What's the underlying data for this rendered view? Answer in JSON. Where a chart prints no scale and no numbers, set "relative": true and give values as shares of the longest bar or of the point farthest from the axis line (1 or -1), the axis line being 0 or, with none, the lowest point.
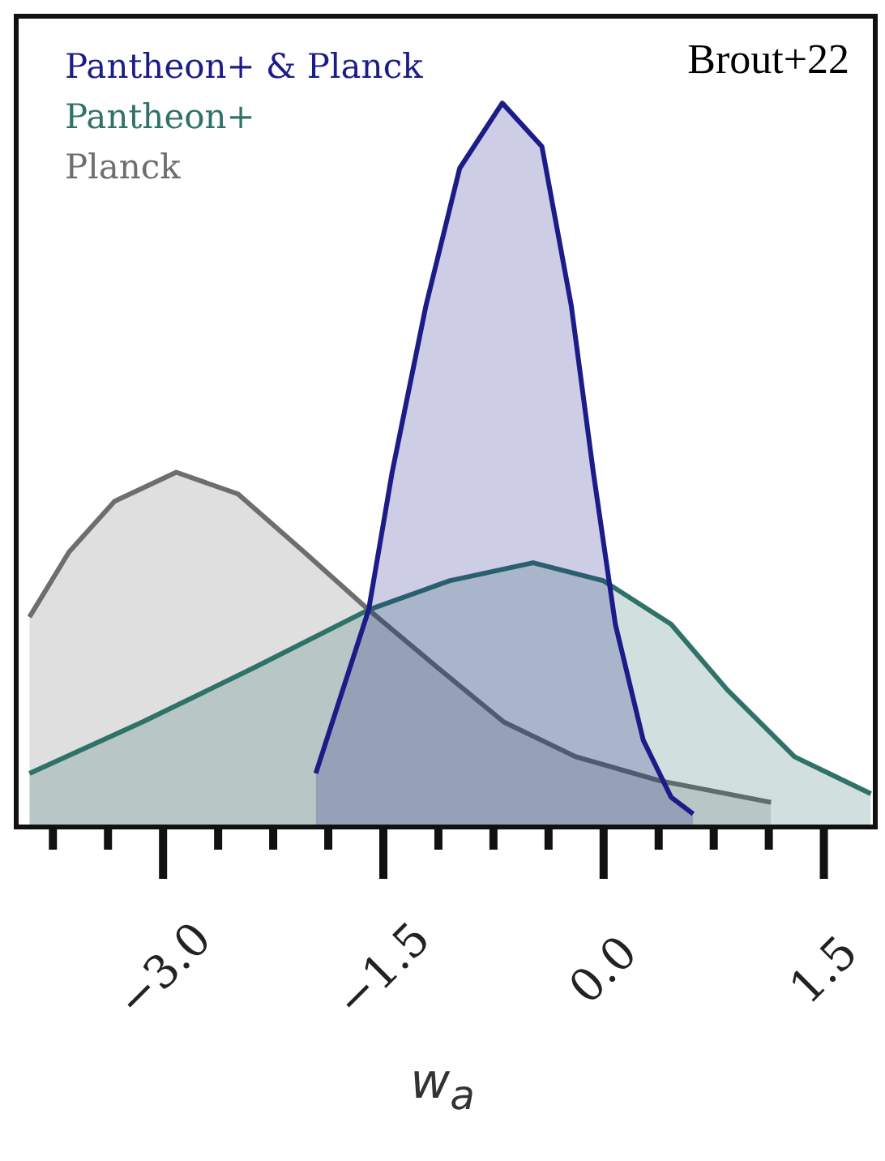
{
  "chart_data": {
    "type": "area",
    "relative": true,
    "xlabel": "w$_{a}$",
    "grid": false,
    "xlim": [
      -4.0,
      1.85
    ],
    "xticks": [
      {
        "value": -3.75,
        "label": null
      },
      {
        "value": -3.375,
        "label": null
      },
      {
        "value": -3,
        "label": "−3.0"
      },
      {
        "value": -2.625,
        "label": null
      },
      {
        "value": -2.25,
        "label": null
      },
      {
        "value": -1.875,
        "label": null
      },
      {
        "value": -1.5,
        "label": "−1.5"
      },
      {
        "value": -1.125,
        "label": null
      },
      {
        "value": -0.75,
        "label": null
      },
      {
        "value": -0.375,
        "label": null
      },
      {
        "value": 0,
        "label": "0.0"
      },
      {
        "value": 0.375,
        "label": null
      },
      {
        "value": 0.75,
        "label": null
      },
      {
        "value": 1.125,
        "label": null
      },
      {
        "value": 1.5,
        "label": "1.5"
      }
    ],
    "annotations": [
      "Brout+22"
    ],
    "series": [
      {
        "name": "Pantheon+ & Planck",
        "color": "#1c1c88",
        "x": [
          -1.96,
          -1.6,
          -1.44,
          -1.21,
          -0.98,
          -0.69,
          -0.42,
          -0.22,
          -0.07,
          0.08,
          0.27,
          0.46,
          0.61
        ],
        "values": [
          0.074,
          0.3,
          0.49,
          0.72,
          0.91,
          1.0,
          0.94,
          0.72,
          0.49,
          0.28,
          0.12,
          0.041,
          0.018
        ]
      },
      {
        "name": "Pantheon+",
        "color": "#2f7268",
        "x": [
          -3.91,
          -3.14,
          -2.38,
          -1.6,
          -1.05,
          -0.48,
          0.0,
          0.46,
          0.84,
          1.3,
          1.82
        ],
        "values": [
          0.074,
          0.145,
          0.22,
          0.3,
          0.34,
          0.365,
          0.34,
          0.28,
          0.19,
          0.097,
          0.046
        ]
      },
      {
        "name": "Planck",
        "color": "#6e6e6e",
        "x": [
          -3.91,
          -3.64,
          -3.33,
          -2.91,
          -2.49,
          -2.04,
          -1.6,
          -1.13,
          -0.68,
          -0.19,
          0.38,
          1.14
        ],
        "values": [
          0.29,
          0.38,
          0.45,
          0.49,
          0.46,
          0.38,
          0.3,
          0.22,
          0.145,
          0.097,
          0.064,
          0.034
        ]
      }
    ]
  }
}
